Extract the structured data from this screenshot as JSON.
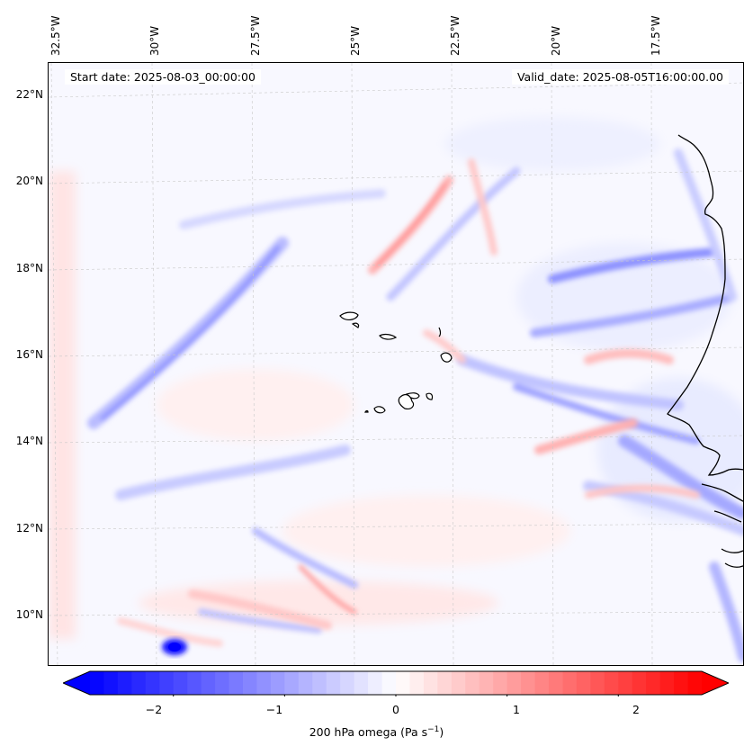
{
  "map": {
    "info_left": "Start date: 2025-08-03_00:00:00",
    "info_right": "Valid_date: 2025-08-05T16:00:00.00",
    "lon_labels": [
      "32.5°W",
      "30°W",
      "27.5°W",
      "25°W",
      "22.5°W",
      "20°W",
      "17.5°W"
    ],
    "lat_labels": [
      "22°N",
      "20°N",
      "18°N",
      "16°N",
      "14°N",
      "12°N",
      "10°N"
    ],
    "field": "200 hPa omega",
    "colormap": "bwr",
    "colors": {
      "negative": "#0000ff",
      "zero": "#ffffff",
      "positive": "#ff0000",
      "coastline": "#000000"
    }
  },
  "colorbar": {
    "ticks": [
      "−2",
      "−1",
      "0",
      "1",
      "2"
    ],
    "label_main": "200 hPa omega (Pa s",
    "label_sup": "−1",
    "label_end": ")",
    "range": [
      -2.75,
      2.75
    ],
    "extend": "both"
  }
}
